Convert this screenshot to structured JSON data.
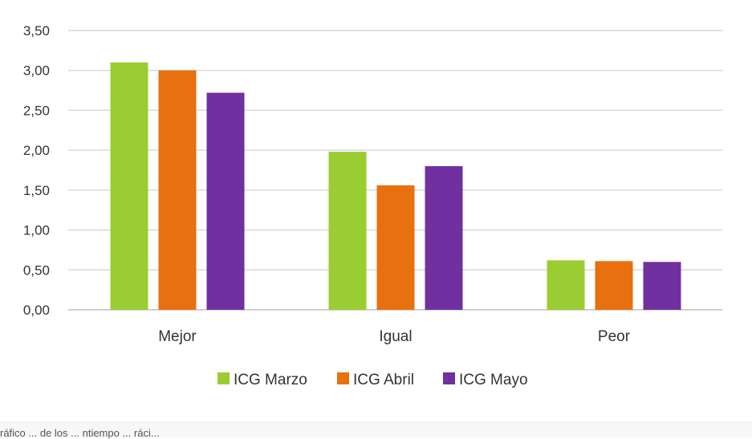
{
  "chart_data": {
    "type": "bar",
    "categories": [
      "Mejor",
      "Igual",
      "Peor"
    ],
    "series": [
      {
        "name": "ICG Marzo",
        "values": [
          3.1,
          1.98,
          0.62
        ],
        "color": "#9acd32"
      },
      {
        "name": "ICG Abril",
        "values": [
          3.0,
          1.56,
          0.61
        ],
        "color": "#e8700f"
      },
      {
        "name": "ICG Mayo",
        "values": [
          2.72,
          1.8,
          0.6
        ],
        "color": "#7030a0"
      }
    ],
    "yticks": [
      "0,00",
      "0,50",
      "1,00",
      "1,50",
      "2,00",
      "2,50",
      "3,00",
      "3,50"
    ],
    "ylim": [
      0,
      3.5
    ],
    "grid": true,
    "legend_position": "bottom"
  },
  "caption": "ráfico ... de los ... ntiempo ... ráci..."
}
